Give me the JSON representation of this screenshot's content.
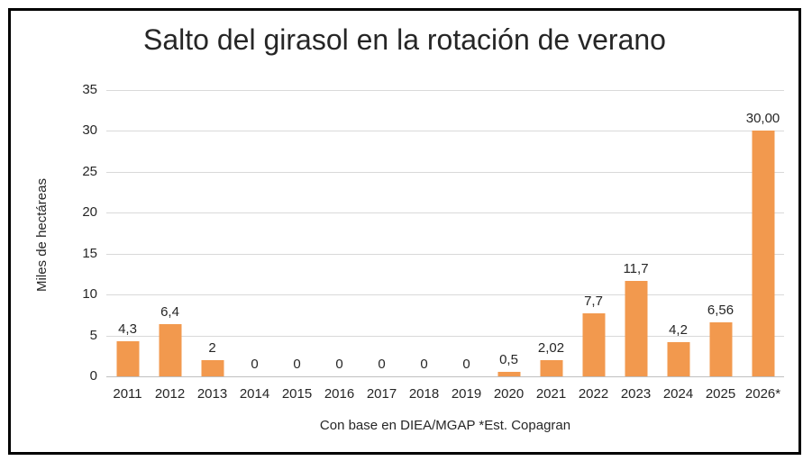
{
  "chart_data": {
    "type": "bar",
    "title": "Salto del girasol en la rotación de verano",
    "ylabel": "Miles de hectáreas",
    "xlabel": "Con base en DIEA/MGAP *Est. Copagran",
    "categories": [
      "2011",
      "2012",
      "2013",
      "2014",
      "2015",
      "2016",
      "2017",
      "2018",
      "2019",
      "2020",
      "2021",
      "2022",
      "2023",
      "2024",
      "2025",
      "2026*"
    ],
    "values": [
      4.3,
      6.4,
      2,
      0,
      0,
      0,
      0,
      0,
      0,
      0.5,
      2.02,
      7.7,
      11.7,
      4.2,
      6.56,
      30.0
    ],
    "value_labels": [
      "4,3",
      "6,4",
      "2",
      "0",
      "0",
      "0",
      "0",
      "0",
      "0",
      "0,5",
      "2,02",
      "7,7",
      "11,7",
      "4,2",
      "6,56",
      "30,00"
    ],
    "ylim": [
      0,
      35
    ],
    "yticks": [
      0,
      5,
      10,
      15,
      20,
      25,
      30,
      35
    ],
    "grid": true,
    "legend": false,
    "bar_color": "#F2994E",
    "gridline_color": "#D9D9D9",
    "text_color": "#262626",
    "frame_border_color": "#000000"
  }
}
